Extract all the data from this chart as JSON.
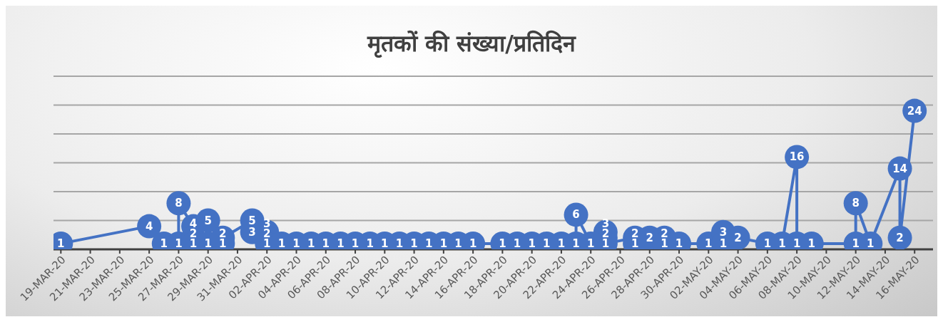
{
  "chart_data": {
    "type": "line",
    "title": "मृतकों की संख्या/प्रतिदिन",
    "x": [
      "--03-19",
      "--03-25",
      "--03-26",
      "--03-27",
      "--03-27",
      "--03-28",
      "--03-28",
      "--03-28",
      "--03-29",
      "--03-29",
      "--03-30",
      "--03-30",
      "--04-01",
      "--04-01",
      "--04-02",
      "--04-02",
      "--04-02",
      "--04-03",
      "--04-04",
      "--04-05",
      "--04-06",
      "--04-07",
      "--04-08",
      "--04-09",
      "--04-10",
      "--04-11",
      "--04-12",
      "--04-13",
      "--04-14",
      "--04-15",
      "--04-16",
      "--04-18",
      "--04-19",
      "--04-20",
      "--04-21",
      "--04-22",
      "--04-23",
      "--04-23",
      "--04-24",
      "--04-25",
      "--04-25",
      "--04-25",
      "--04-27",
      "--04-27",
      "--04-28",
      "--04-29",
      "--04-29",
      "--04-30",
      "--05-02",
      "--05-03",
      "--05-03",
      "--05-04",
      "--05-06",
      "--05-07",
      "--05-08",
      "--05-08",
      "--05-09",
      "--05-12",
      "--05-12",
      "--05-13",
      "--05-15",
      "--05-15",
      "--05-16"
    ],
    "series": [
      {
        "color": "#4472c4",
        "values": [
          1,
          4,
          1,
          1,
          8,
          4,
          2,
          1,
          5,
          1,
          1,
          2,
          5,
          3,
          3,
          2,
          1,
          1,
          1,
          1,
          1,
          1,
          1,
          1,
          1,
          1,
          1,
          1,
          1,
          1,
          1,
          1,
          1,
          1,
          1,
          1,
          1,
          6,
          1,
          3,
          2,
          1,
          2,
          1,
          2,
          2,
          1,
          1,
          1,
          3,
          1,
          2,
          1,
          1,
          16,
          1,
          1,
          1,
          8,
          1,
          14,
          2,
          24
        ]
      }
    ],
    "xlim": [
      "--03-18T12:00",
      "--05-17T06:00"
    ],
    "xticks": [
      {
        "value": "--03-19",
        "label": "19-MAR-20"
      },
      {
        "value": "--03-21",
        "label": "21-MAR-20"
      },
      {
        "value": "--03-23",
        "label": "23-MAR-20"
      },
      {
        "value": "--03-25",
        "label": "25-MAR-20"
      },
      {
        "value": "--03-27",
        "label": "27-MAR-20"
      },
      {
        "value": "--03-29",
        "label": "29-MAR-20"
      },
      {
        "value": "--03-31",
        "label": "31-MAR-20"
      },
      {
        "value": "--04-02",
        "label": "02-APR-20"
      },
      {
        "value": "--04-04",
        "label": "04-APR-20"
      },
      {
        "value": "--04-06",
        "label": "06-APR-20"
      },
      {
        "value": "--04-08",
        "label": "08-APR-20"
      },
      {
        "value": "--04-10",
        "label": "10-APR-20"
      },
      {
        "value": "--04-12",
        "label": "12-APR-20"
      },
      {
        "value": "--04-14",
        "label": "14-APR-20"
      },
      {
        "value": "--04-16",
        "label": "16-APR-20"
      },
      {
        "value": "--04-18",
        "label": "18-APR-20"
      },
      {
        "value": "--04-20",
        "label": "20-APR-20"
      },
      {
        "value": "--04-22",
        "label": "22-APR-20"
      },
      {
        "value": "--04-24",
        "label": "24-APR-20"
      },
      {
        "value": "--04-26",
        "label": "26-APR-20"
      },
      {
        "value": "--04-28",
        "label": "28-APR-20"
      },
      {
        "value": "--04-30",
        "label": "30-APR-20"
      },
      {
        "value": "--05-02",
        "label": "02-MAY-20"
      },
      {
        "value": "--05-04",
        "label": "04-MAY-20"
      },
      {
        "value": "--05-06",
        "label": "06-MAY-20"
      },
      {
        "value": "--05-08",
        "label": "08-MAY-20"
      },
      {
        "value": "--05-10",
        "label": "10-MAY-20"
      },
      {
        "value": "--05-12",
        "label": "12-MAY-20"
      },
      {
        "value": "--05-14",
        "label": "14-MAY-20"
      },
      {
        "value": "--05-16",
        "label": "16-MAY-20"
      }
    ],
    "ylim": [
      0,
      30
    ],
    "yticks": [
      {
        "value": 0,
        "label": null
      },
      {
        "value": 5,
        "label": null
      },
      {
        "value": 10,
        "label": null
      },
      {
        "value": 15,
        "label": null
      },
      {
        "value": 20,
        "label": null
      },
      {
        "value": 25,
        "label": null
      },
      {
        "value": 30,
        "label": null
      }
    ],
    "tick_labels": "x",
    "grid": "y",
    "marker": "circle",
    "line_style": "solid",
    "data_labels": true,
    "legend": false
  }
}
